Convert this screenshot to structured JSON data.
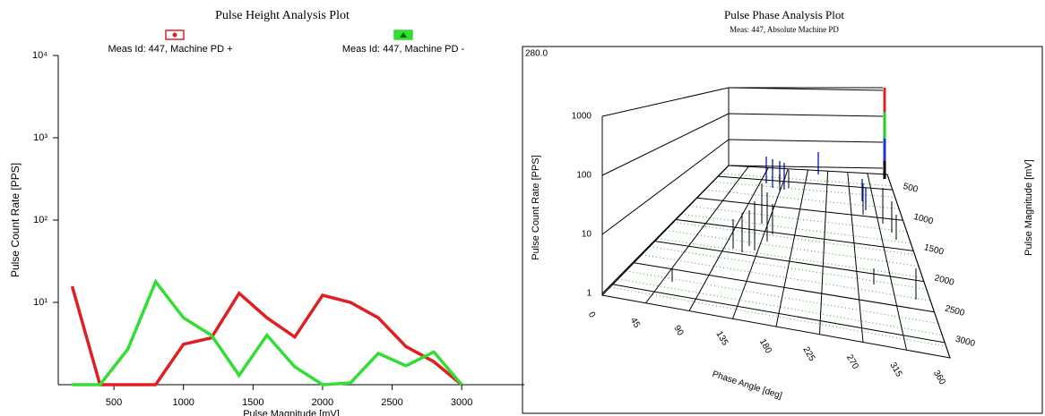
{
  "chart_data": [
    {
      "type": "line",
      "title": "Pulse Height Analysis Plot",
      "xlabel": "Pulse Magnitude [mV]",
      "ylabel": "Pulse Count Rate [PPS]",
      "log_y": true,
      "xlim": [
        100,
        3450
      ],
      "ylim": [
        1,
        10000
      ],
      "xticks": [
        500,
        1000,
        1500,
        2000,
        2500,
        3000
      ],
      "yticks": [
        {
          "value": 10,
          "label": "10¹"
        },
        {
          "value": 100,
          "label": "10²"
        },
        {
          "value": 1000,
          "label": "10³"
        },
        {
          "value": 10000,
          "label": "10⁴"
        }
      ],
      "x": [
        200,
        400,
        600,
        800,
        1000,
        1200,
        1400,
        1600,
        1800,
        2000,
        2200,
        2400,
        2600,
        2800,
        3000
      ],
      "series": [
        {
          "name": "Meas Id: 447, Machine PD +",
          "color": "#e02020",
          "marker": "circle",
          "values": [
            15.7,
            1,
            1,
            1,
            3.1,
            3.7,
            12.9,
            6.5,
            3.8,
            12.2,
            10,
            6.5,
            2.9,
            1.9,
            1
          ]
        },
        {
          "name": "Meas Id: 447, Machine PD -",
          "color": "#33dd33",
          "marker": "triangle",
          "values": [
            1,
            1,
            2.7,
            17.8,
            6.5,
            4.0,
            1.3,
            4.0,
            1.65,
            1,
            1.05,
            2.4,
            1.7,
            2.5,
            1
          ]
        }
      ]
    },
    {
      "type": "bar3d",
      "title": "Pulse Phase Analysis Plot",
      "subtitle": "Meas: 447, Absolute Machine PD",
      "corner_label": "280.0",
      "ylabel": "Pulse Count Rate [PPS]",
      "xlabel": "Phase Angle [deg]",
      "zlabel": "Pulse Magnitude [mV]",
      "log_y": true,
      "yticks": [
        1000,
        100,
        10,
        1
      ],
      "xticks": [
        0,
        45,
        90,
        135,
        180,
        225,
        270,
        315,
        360
      ],
      "zticks": [
        500,
        1000,
        1500,
        2000,
        2500,
        3000
      ]
    }
  ]
}
